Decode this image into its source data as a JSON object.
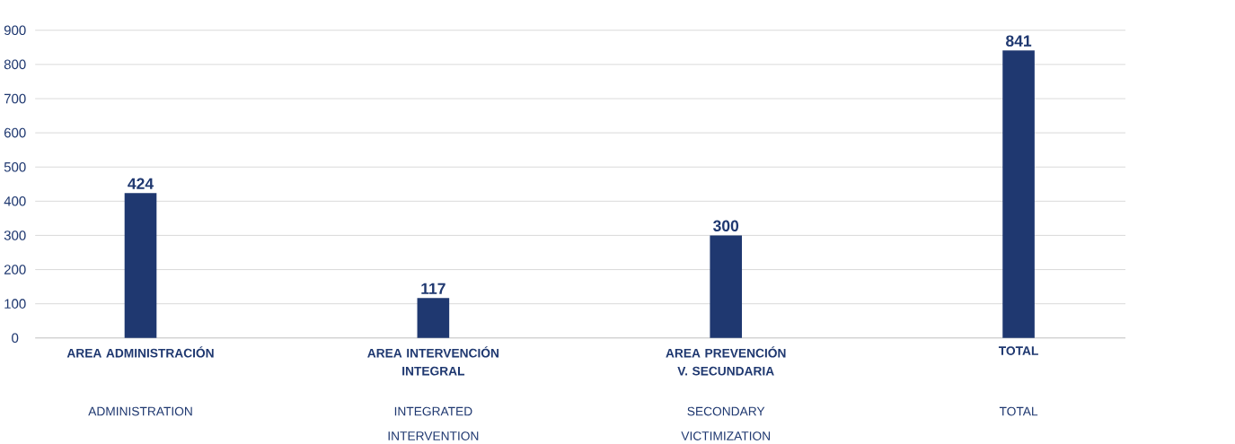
{
  "chart_data": {
    "type": "bar",
    "categories": [
      "AREA ADMINISTRACIÓN",
      "AREA INTERVENCIÓN INTEGRAL",
      "AREA PREVENCIÓN V. SECUNDARIA",
      "TOTAL"
    ],
    "values": [
      424,
      117,
      300,
      841
    ],
    "color": "#1f3870",
    "data_labels": true,
    "ylim": [
      0,
      900
    ],
    "yticks": [
      0,
      100,
      200,
      300,
      400,
      500,
      600,
      700,
      800,
      900
    ],
    "grid": "y",
    "annotations": [
      "ADMINISTRATION",
      "INTEGRATED INTERVENTION",
      "SECONDARY VICTIMIZATION",
      "TOTAL"
    ]
  }
}
